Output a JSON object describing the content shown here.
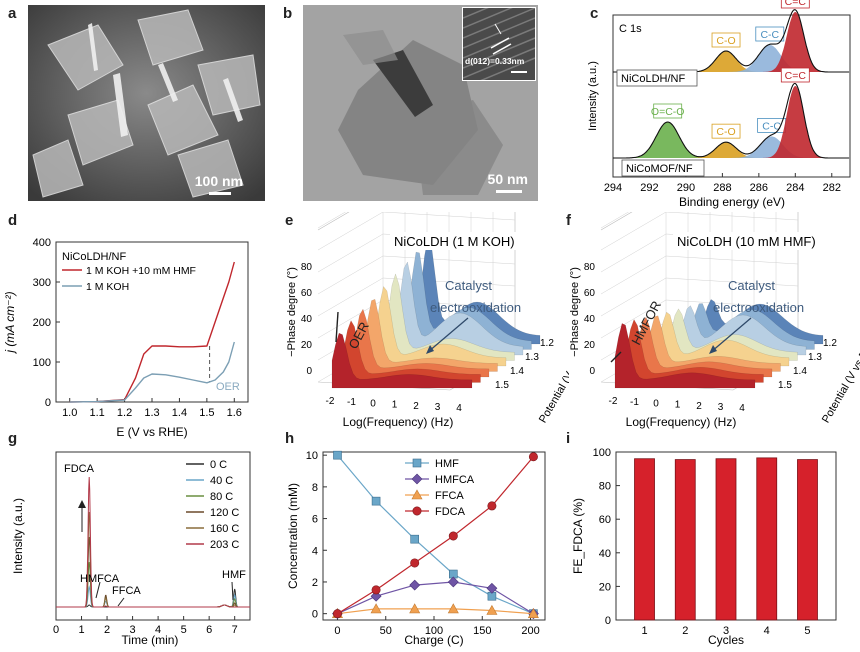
{
  "panels": {
    "a": {
      "letter": "a",
      "scale_label": "100 nm"
    },
    "b": {
      "letter": "b",
      "scale_label": "50 nm",
      "inset_label": "d(012)=0.33nm"
    },
    "c": {
      "letter": "c"
    },
    "d": {
      "letter": "d"
    },
    "e": {
      "letter": "e"
    },
    "f": {
      "letter": "f"
    },
    "g": {
      "letter": "g"
    },
    "h": {
      "letter": "h"
    },
    "i": {
      "letter": "i"
    }
  },
  "colors": {
    "hmf_series": "#6aa6c8",
    "red_series": "#c0272d",
    "purple": "#6f55a5",
    "orange": "#f0a050",
    "green": "#6ab04c",
    "gold": "#d9a021",
    "blue_peak": "#5b8fc9"
  },
  "chart_data": [
    {
      "id": "c",
      "type": "line",
      "xlabel": "Binding energy (eV)",
      "ylabel": "Intensity (a.u.)",
      "xticks": [
        294,
        292,
        290,
        288,
        286,
        284,
        282
      ],
      "xlim": [
        294,
        281
      ],
      "header": "C 1s",
      "series": [
        {
          "name": "NiCoLDH/NF",
          "peaks": [
            {
              "label": "C-O",
              "center": 287.8,
              "height": 0.35
            },
            {
              "label": "C-C",
              "center": 285.4,
              "height": 0.45
            },
            {
              "label": "C=C",
              "center": 284.0,
              "height": 1.0
            }
          ]
        },
        {
          "name": "NiCoMOF/NF",
          "peaks": [
            {
              "label": "O=C-O",
              "center": 291.0,
              "height": 0.5
            },
            {
              "label": "C-O",
              "center": 287.8,
              "height": 0.22
            },
            {
              "label": "C-C",
              "center": 285.3,
              "height": 0.3
            },
            {
              "label": "C=C",
              "center": 284.0,
              "height": 1.0
            }
          ]
        }
      ]
    },
    {
      "id": "d",
      "type": "line",
      "title": "NiCoLDH/NF",
      "xlabel": "E (V vs RHE)",
      "ylabel": "j (mA cm⁻²)",
      "xlim": [
        0.95,
        1.65
      ],
      "ylim": [
        0,
        400
      ],
      "xticks": [
        "1.0",
        "1.1",
        "1.2",
        "1.3",
        "1.4",
        "1.5",
        "1.6"
      ],
      "yticks": [
        "0",
        "100",
        "200",
        "300",
        "400"
      ],
      "annotation": "OER",
      "series": [
        {
          "name": "1 M KOH +10 mM HMF",
          "x": [
            1.0,
            1.1,
            1.2,
            1.24,
            1.27,
            1.3,
            1.35,
            1.4,
            1.45,
            1.5,
            1.53,
            1.56,
            1.58,
            1.6
          ],
          "y": [
            0,
            1,
            6,
            60,
            120,
            140,
            140,
            138,
            138,
            140,
            200,
            260,
            300,
            350
          ]
        },
        {
          "name": "1 M KOH",
          "x": [
            1.0,
            1.1,
            1.2,
            1.24,
            1.27,
            1.3,
            1.35,
            1.4,
            1.45,
            1.5,
            1.53,
            1.56,
            1.58,
            1.6
          ],
          "y": [
            0,
            1,
            5,
            35,
            60,
            70,
            68,
            62,
            55,
            48,
            55,
            75,
            100,
            150
          ]
        }
      ]
    },
    {
      "id": "e",
      "type": "area",
      "title": "NiCoLDH (1 M KOH)",
      "xlabel": "Log(Frequency) (Hz)",
      "ylabel": "−Phase degree (°)",
      "zlabel": "Potential (V vs RHE)",
      "xticks": [
        "-2",
        "-1",
        "0",
        "1",
        "2",
        "3",
        "4"
      ],
      "yticks": [
        "0",
        "20",
        "40",
        "60",
        "80"
      ],
      "zticks": [
        "1.2",
        "1.3",
        "1.4",
        "1.5"
      ],
      "annotations": [
        "OER",
        "Catalyst",
        "electrooxidation"
      ]
    },
    {
      "id": "f",
      "type": "area",
      "title": "NiCoLDH (10 mM HMF)",
      "xlabel": "Log(Frequency) (Hz)",
      "ylabel": "−Phase degree (°)",
      "zlabel": "Potential (V vs RHE)",
      "xticks": [
        "-2",
        "-1",
        "0",
        "1",
        "2",
        "3",
        "4"
      ],
      "yticks": [
        "0",
        "20",
        "40",
        "60",
        "80"
      ],
      "zticks": [
        "1.2",
        "1.3",
        "1.4",
        "1.5"
      ],
      "annotations": [
        "HMFOR",
        "Catalyst",
        "electrooxidation"
      ]
    },
    {
      "id": "g",
      "type": "line",
      "xlabel": "Time (min)",
      "ylabel": "Intensity (a.u.)",
      "xlim": [
        0,
        7.6
      ],
      "xticks": [
        "0",
        "1",
        "2",
        "3",
        "4",
        "5",
        "6",
        "7"
      ],
      "peak_labels": [
        "FDCA",
        "HMFCA",
        "FFCA",
        "HMF"
      ],
      "series": [
        {
          "name": "0 C"
        },
        {
          "name": "40 C"
        },
        {
          "name": "80 C"
        },
        {
          "name": "120 C"
        },
        {
          "name": "160 C"
        },
        {
          "name": "203 C"
        }
      ]
    },
    {
      "id": "h",
      "type": "line",
      "xlabel": "Charge (C)",
      "ylabel": "Concentration (mM)",
      "xlim": [
        -15,
        215
      ],
      "ylim": [
        -0.4,
        10.2
      ],
      "xticks": [
        0,
        50,
        100,
        150,
        200
      ],
      "yticks": [
        0,
        2,
        4,
        6,
        8,
        10
      ],
      "x": [
        0,
        40,
        80,
        120,
        160,
        203
      ],
      "series": [
        {
          "name": "HMF",
          "values": [
            10.0,
            7.1,
            4.7,
            2.5,
            1.1,
            0.0
          ]
        },
        {
          "name": "HMFCA",
          "values": [
            0.0,
            1.1,
            1.8,
            2.0,
            1.6,
            0.0
          ]
        },
        {
          "name": "FFCA",
          "values": [
            0.0,
            0.3,
            0.3,
            0.3,
            0.2,
            0.0
          ]
        },
        {
          "name": "FDCA",
          "values": [
            0.0,
            1.5,
            3.2,
            4.9,
            6.8,
            9.9
          ]
        }
      ]
    },
    {
      "id": "i",
      "type": "bar",
      "xlabel": "Cycles",
      "ylabel": "FE_FDCA (%)",
      "categories": [
        "1",
        "2",
        "3",
        "4",
        "5"
      ],
      "values": [
        96,
        95.5,
        96,
        96.5,
        95.5
      ],
      "ylim": [
        0,
        100
      ],
      "yticks": [
        0,
        20,
        40,
        60,
        80,
        100
      ]
    }
  ]
}
